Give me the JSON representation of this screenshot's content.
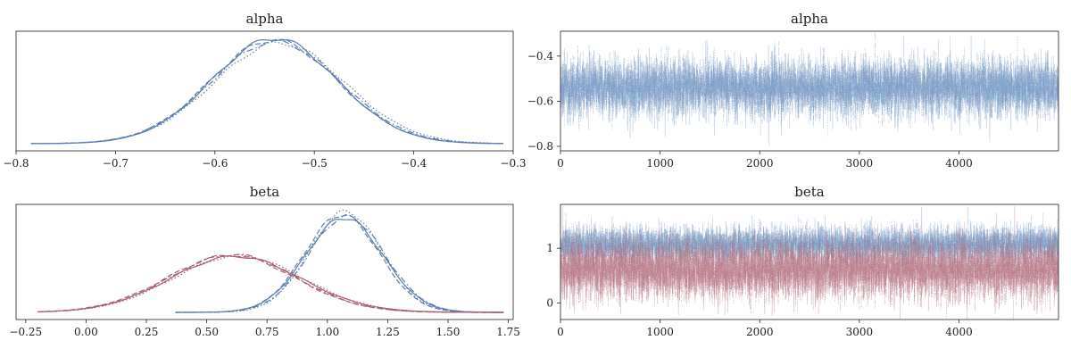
{
  "colors": {
    "blue": "#5b7fae",
    "red": "#a85d72",
    "blue_trace": "#6f95c2",
    "red_trace": "#b37080",
    "axis": "#222222"
  },
  "chart_data": [
    {
      "type": "line",
      "panel": "density",
      "title": "alpha",
      "xlim": [
        -0.8,
        -0.3
      ],
      "xticks": [
        -0.8,
        -0.7,
        -0.6,
        -0.5,
        -0.4,
        -0.3
      ],
      "xtick_labels": [
        "−0.8",
        "−0.7",
        "−0.6",
        "−0.5",
        "−0.4",
        "−0.3"
      ],
      "yticks_shown": false,
      "series": [
        {
          "color": "blue",
          "dash": "solid",
          "mean": -0.54,
          "sd": 0.063,
          "range": [
            -0.785,
            -0.31
          ]
        },
        {
          "color": "blue",
          "dash": "dashed",
          "mean": -0.541,
          "sd": 0.064,
          "range": [
            -0.785,
            -0.31
          ]
        },
        {
          "color": "blue",
          "dash": "dashdot",
          "mean": -0.539,
          "sd": 0.065,
          "range": [
            -0.785,
            -0.31
          ]
        },
        {
          "color": "blue",
          "dash": "dotted",
          "mean": -0.535,
          "sd": 0.066,
          "range": [
            -0.785,
            -0.31
          ]
        }
      ]
    },
    {
      "type": "line",
      "panel": "trace",
      "title": "alpha",
      "xlim": [
        0,
        4999
      ],
      "ylim": [
        -0.82,
        -0.29
      ],
      "xticks": [
        0,
        1000,
        2000,
        3000,
        4000
      ],
      "xtick_labels": [
        "0",
        "1000",
        "2000",
        "3000",
        "4000"
      ],
      "yticks": [
        -0.8,
        -0.6,
        -0.4
      ],
      "ytick_labels": [
        "−0.8",
        "−0.6",
        "−0.4"
      ],
      "series": [
        {
          "color": "blue_trace",
          "mean": -0.54,
          "sd": 0.064,
          "n_draws": 5000,
          "chains": 4
        }
      ]
    },
    {
      "type": "line",
      "panel": "density",
      "title": "beta",
      "xlim": [
        -0.29,
        1.77
      ],
      "xticks": [
        -0.25,
        0.0,
        0.25,
        0.5,
        0.75,
        1.0,
        1.25,
        1.5,
        1.75
      ],
      "xtick_labels": [
        "−0.25",
        "0.00",
        "0.25",
        "0.50",
        "0.75",
        "1.00",
        "1.25",
        "1.50",
        "1.75"
      ],
      "yticks_shown": false,
      "series": [
        {
          "color": "blue",
          "dash": "solid",
          "mean": 1.07,
          "sd": 0.16,
          "range": [
            0.37,
            1.73
          ]
        },
        {
          "color": "blue",
          "dash": "dashed",
          "mean": 1.06,
          "sd": 0.155,
          "range": [
            0.37,
            1.73
          ]
        },
        {
          "color": "blue",
          "dash": "dashdot",
          "mean": 1.08,
          "sd": 0.158,
          "range": [
            0.37,
            1.73
          ]
        },
        {
          "color": "blue",
          "dash": "dotted",
          "mean": 1.075,
          "sd": 0.15,
          "range": [
            0.37,
            1.73
          ]
        },
        {
          "color": "red",
          "dash": "solid",
          "mean": 0.62,
          "sd": 0.27,
          "range": [
            -0.2,
            1.73
          ]
        },
        {
          "color": "red",
          "dash": "dashed",
          "mean": 0.6,
          "sd": 0.265,
          "range": [
            -0.2,
            1.73
          ]
        },
        {
          "color": "red",
          "dash": "dashdot",
          "mean": 0.61,
          "sd": 0.262,
          "range": [
            -0.2,
            1.73
          ]
        },
        {
          "color": "red",
          "dash": "dotted",
          "mean": 0.63,
          "sd": 0.268,
          "range": [
            -0.2,
            1.73
          ]
        }
      ]
    },
    {
      "type": "line",
      "panel": "trace",
      "title": "beta",
      "xlim": [
        0,
        4999
      ],
      "ylim": [
        -0.3,
        1.8
      ],
      "xticks": [
        0,
        1000,
        2000,
        3000,
        4000
      ],
      "xtick_labels": [
        "0",
        "1000",
        "2000",
        "3000",
        "4000"
      ],
      "yticks": [
        0,
        1
      ],
      "ytick_labels": [
        "0",
        "1"
      ],
      "series": [
        {
          "color": "blue_trace",
          "mean": 1.07,
          "sd": 0.16,
          "n_draws": 5000,
          "chains": 4
        },
        {
          "color": "red_trace",
          "mean": 0.61,
          "sd": 0.27,
          "n_draws": 5000,
          "chains": 4
        }
      ]
    }
  ]
}
